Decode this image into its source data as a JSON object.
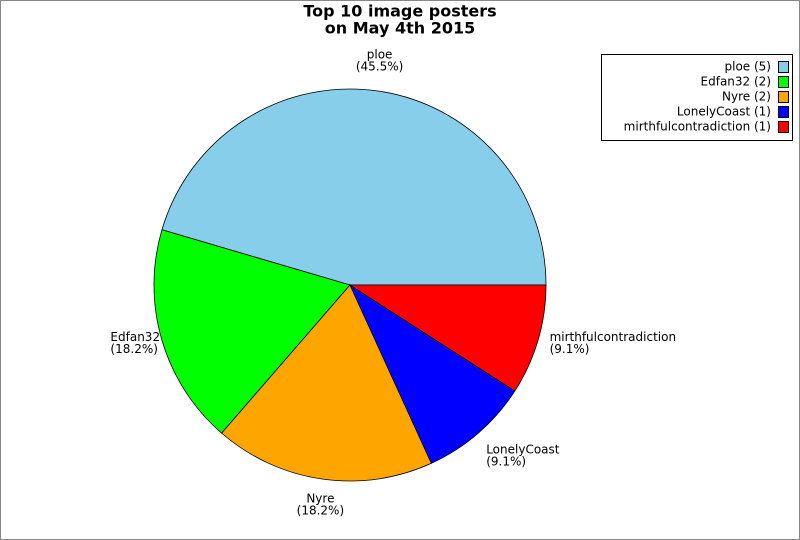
{
  "chart_data": {
    "type": "pie",
    "title": [
      "Top 10 image posters",
      "on May 4th 2015"
    ],
    "categories": [
      "ploe",
      "Edfan32",
      "Nyre",
      "LonelyCoast",
      "mirthfulcontradiction"
    ],
    "values": [
      45.5,
      18.2,
      18.2,
      9.1,
      9.1
    ],
    "value_labels": [
      "(45.5%)",
      "(18.2%)",
      "(18.2%)",
      "(9.1%)",
      "(9.1%)"
    ],
    "legend_labels": [
      "ploe (5)",
      "Edfan32 (2)",
      "Nyre (2)",
      "LonelyCoast (1)",
      "mirthfulcontradiction (1)"
    ],
    "colors": [
      "#87ceeb",
      "#00ff00",
      "#ffa500",
      "#0000ff",
      "#ff0000"
    ],
    "legend": "upper right"
  }
}
